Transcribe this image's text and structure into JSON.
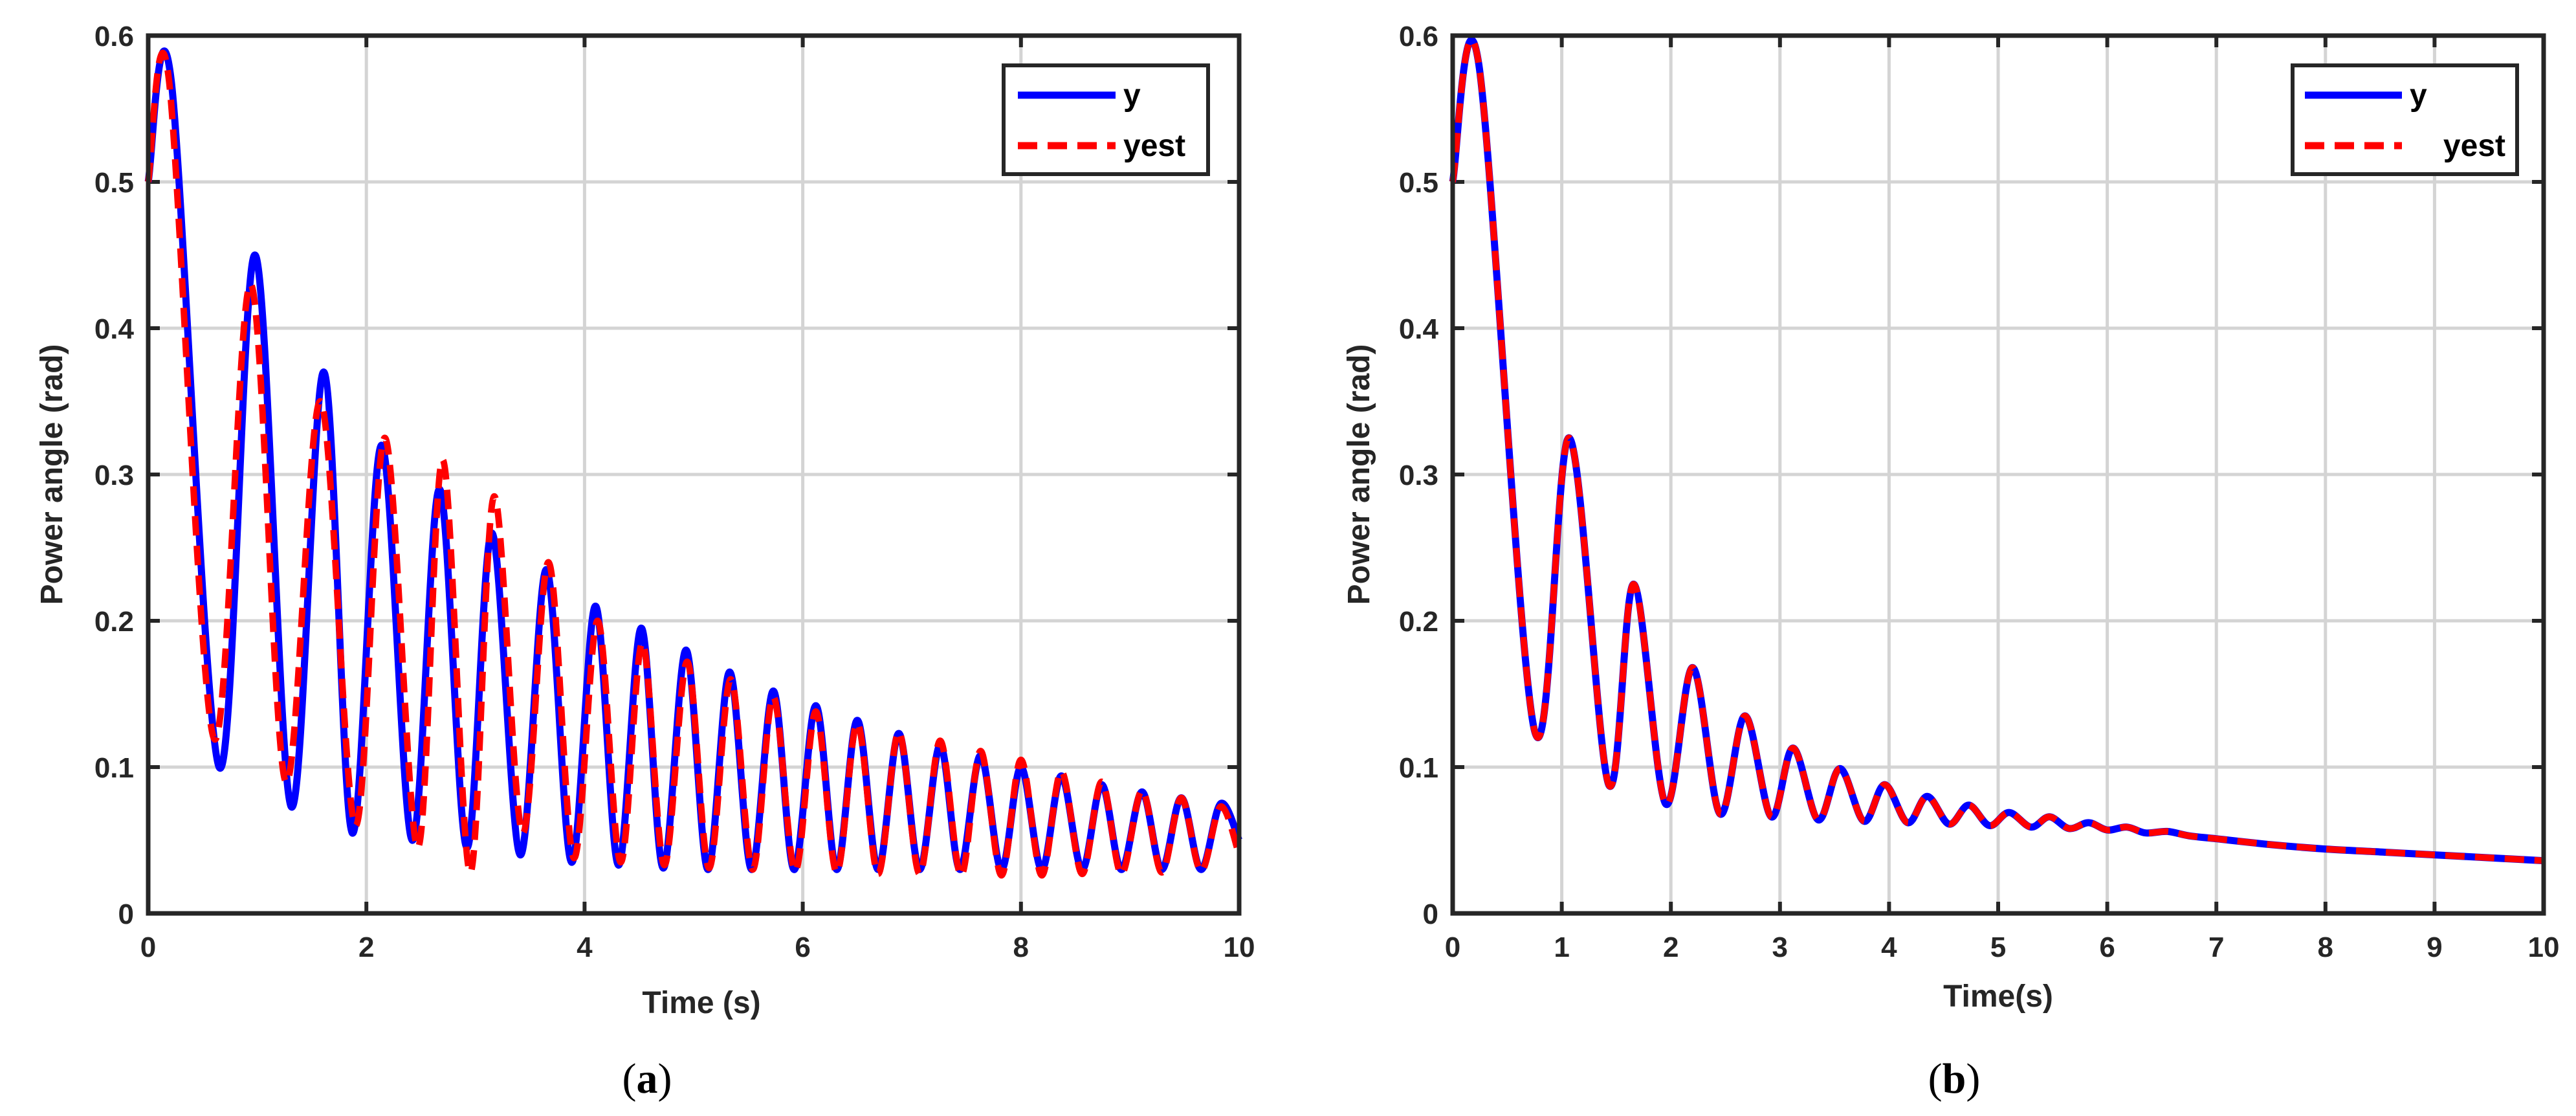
{
  "colors": {
    "y": "#0000ff",
    "yest": "#ff0000",
    "grid": "#d4d4d4",
    "axes": "#262626"
  },
  "chart_data": [
    {
      "type": "line",
      "panel_label": "a",
      "title": "",
      "xlabel": "Time (s)",
      "ylabel": "Power angle (rad)",
      "xlim": [
        0,
        10
      ],
      "ylim": [
        0,
        0.6
      ],
      "xticks": [
        0,
        2,
        4,
        6,
        8,
        10
      ],
      "yticks": [
        0,
        0.1,
        0.2,
        0.3,
        0.4,
        0.5,
        0.6
      ],
      "xtick_labels": [
        "0",
        "2",
        "4",
        "6",
        "8",
        "10"
      ],
      "ytick_labels": [
        "0",
        "0.1",
        "0.2",
        "0.3",
        "0.4",
        "0.5",
        "0.6"
      ],
      "grid": true,
      "legend": "top-right",
      "series": [
        {
          "name": "y",
          "style": "solid",
          "x": [
            0,
            0.21,
            0.65,
            0.98,
            1.31,
            1.61,
            1.87,
            2.14,
            2.42,
            2.67,
            2.92,
            3.15,
            3.41,
            3.65,
            3.88,
            4.1,
            4.31,
            4.52,
            4.72,
            4.93,
            5.13,
            5.33,
            5.53,
            5.73,
            5.92,
            6.12,
            6.31,
            6.5,
            6.69,
            6.88,
            7.07,
            7.26,
            7.44,
            7.63,
            7.82,
            8.0,
            8.19,
            8.37,
            8.56,
            8.74,
            8.92,
            9.11,
            9.29,
            9.47,
            9.65,
            9.83,
            10.0
          ],
          "values": [
            0.5,
            0.57,
            0.1,
            0.45,
            0.073,
            0.37,
            0.055,
            0.32,
            0.05,
            0.29,
            0.045,
            0.26,
            0.04,
            0.235,
            0.035,
            0.21,
            0.033,
            0.195,
            0.031,
            0.18,
            0.03,
            0.165,
            0.03,
            0.152,
            0.03,
            0.142,
            0.03,
            0.132,
            0.03,
            0.123,
            0.03,
            0.115,
            0.03,
            0.108,
            0.03,
            0.1,
            0.03,
            0.094,
            0.03,
            0.088,
            0.03,
            0.083,
            0.03,
            0.079,
            0.03,
            0.075,
            0.05
          ]
        },
        {
          "name": "yest",
          "style": "dashed",
          "x": [
            0,
            0.19,
            0.6,
            0.94,
            1.26,
            1.58,
            1.9,
            2.17,
            2.47,
            2.7,
            2.95,
            3.17,
            3.43,
            3.67,
            3.9,
            4.12,
            4.33,
            4.53,
            4.73,
            4.94,
            5.14,
            5.34,
            5.54,
            5.73,
            5.93,
            6.12,
            6.31,
            6.5,
            6.69,
            6.88,
            7.07,
            7.26,
            7.45,
            7.63,
            7.82,
            8.0,
            8.19,
            8.37,
            8.56,
            8.74,
            8.92,
            9.11,
            9.29,
            9.47,
            9.65,
            9.83,
            10.0
          ],
          "values": [
            0.5,
            0.57,
            0.12,
            0.43,
            0.09,
            0.35,
            0.06,
            0.325,
            0.045,
            0.31,
            0.028,
            0.285,
            0.055,
            0.24,
            0.038,
            0.2,
            0.035,
            0.185,
            0.033,
            0.172,
            0.031,
            0.16,
            0.03,
            0.148,
            0.029,
            0.138,
            0.028,
            0.13,
            0.027,
            0.124,
            0.027,
            0.118,
            0.026,
            0.111,
            0.026,
            0.105,
            0.026,
            0.097,
            0.027,
            0.09,
            0.027,
            0.084,
            0.028,
            0.079,
            0.029,
            0.073,
            0.04
          ]
        }
      ]
    },
    {
      "type": "line",
      "panel_label": "b",
      "title": "",
      "xlabel": "Time(s)",
      "ylabel": "Power angle (rad)",
      "xlim": [
        0,
        10
      ],
      "ylim": [
        0,
        0.6
      ],
      "xticks": [
        0,
        1,
        2,
        3,
        4,
        5,
        6,
        7,
        8,
        9,
        10
      ],
      "yticks": [
        0,
        0.1,
        0.2,
        0.3,
        0.4,
        0.5,
        0.6
      ],
      "xtick_labels": [
        "0",
        "1",
        "2",
        "3",
        "4",
        "5",
        "6",
        "7",
        "8",
        "9",
        "10"
      ],
      "ytick_labels": [
        "0",
        "0.1",
        "0.2",
        "0.3",
        "0.4",
        "0.5",
        "0.6"
      ],
      "grid": true,
      "legend": "top-right",
      "series": [
        {
          "name": "y",
          "style": "solid",
          "x": [
            0,
            0.24,
            0.75,
            1.07,
            1.43,
            1.66,
            1.95,
            2.2,
            2.45,
            2.68,
            2.92,
            3.12,
            3.35,
            3.55,
            3.77,
            3.96,
            4.17,
            4.35,
            4.55,
            4.73,
            4.92,
            5.1,
            5.3,
            5.47,
            5.65,
            5.83,
            6.0,
            6.18,
            6.35,
            6.55,
            6.75,
            7.0,
            7.5,
            8.0,
            8.5,
            9.0,
            9.5,
            10.0
          ],
          "values": [
            0.5,
            0.58,
            0.125,
            0.325,
            0.088,
            0.225,
            0.075,
            0.168,
            0.068,
            0.135,
            0.066,
            0.113,
            0.064,
            0.099,
            0.063,
            0.088,
            0.062,
            0.08,
            0.061,
            0.074,
            0.06,
            0.069,
            0.059,
            0.066,
            0.058,
            0.062,
            0.057,
            0.059,
            0.055,
            0.056,
            0.053,
            0.051,
            0.047,
            0.044,
            0.042,
            0.04,
            0.038,
            0.036
          ]
        },
        {
          "name": "yest",
          "style": "dashed",
          "x": [
            0,
            0.24,
            0.75,
            1.07,
            1.43,
            1.66,
            1.95,
            2.2,
            2.45,
            2.68,
            2.92,
            3.12,
            3.35,
            3.55,
            3.77,
            3.96,
            4.17,
            4.35,
            4.55,
            4.73,
            4.92,
            5.1,
            5.3,
            5.47,
            5.65,
            5.83,
            6.0,
            6.18,
            6.35,
            6.55,
            6.75,
            7.0,
            7.5,
            8.0,
            8.5,
            9.0,
            9.5,
            10.0
          ],
          "values": [
            0.5,
            0.58,
            0.125,
            0.325,
            0.088,
            0.225,
            0.075,
            0.168,
            0.068,
            0.135,
            0.066,
            0.113,
            0.064,
            0.099,
            0.063,
            0.088,
            0.062,
            0.08,
            0.061,
            0.074,
            0.06,
            0.069,
            0.059,
            0.066,
            0.058,
            0.062,
            0.057,
            0.059,
            0.055,
            0.056,
            0.053,
            0.051,
            0.047,
            0.044,
            0.042,
            0.04,
            0.038,
            0.036
          ]
        }
      ]
    }
  ]
}
